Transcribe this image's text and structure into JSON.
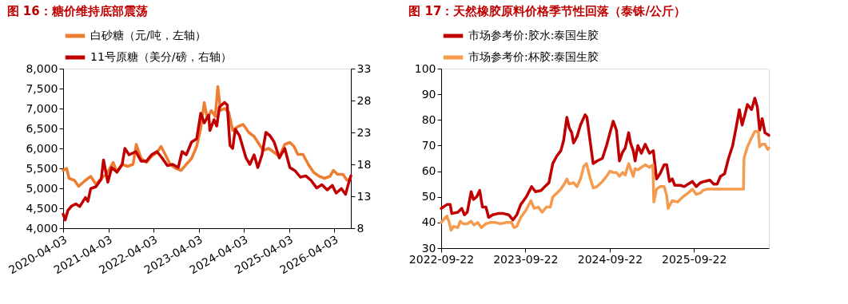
{
  "chart_data": [
    {
      "type": "line",
      "title": "图 16：糖价维持底部震荡",
      "legend": "top",
      "grid": false,
      "xlim": [
        "2020-04-03",
        "2026-08-15"
      ],
      "xticks": [
        "2020-04-03",
        "2021-04-03",
        "2022-04-03",
        "2023-04-03",
        "2024-04-03",
        "2025-04-03",
        "2026-04-03"
      ],
      "ylim": [
        4000,
        8000
      ],
      "yticks": [
        {
          "value": 4000,
          "label": "4,000"
        },
        {
          "value": 4500,
          "label": "4,500"
        },
        {
          "value": 5000,
          "label": "5,000"
        },
        {
          "value": 5500,
          "label": "5,500"
        },
        {
          "value": 6000,
          "label": "6,000"
        },
        {
          "value": 6500,
          "label": "6,500"
        },
        {
          "value": 7000,
          "label": "7,000"
        },
        {
          "value": 7500,
          "label": "7,500"
        },
        {
          "value": 8000,
          "label": "8,000"
        }
      ],
      "y2lim": [
        8,
        33
      ],
      "y2ticks": [
        8,
        13,
        18,
        23,
        28,
        33
      ],
      "series": [
        {
          "name": "白砂糖（元/吨，左轴）",
          "color": "#ed7d31",
          "x": [
            "2020-04-03",
            "2020-05-01",
            "2020-05-21",
            "2020-07-03",
            "2020-08-06",
            "2020-09-30",
            "2020-11-12",
            "2020-12-24",
            "2021-02-05",
            "2021-03-18",
            "2021-05-12",
            "2021-06-12",
            "2021-07-24",
            "2021-09-05",
            "2021-10-20",
            "2021-11-15",
            "2021-12-24",
            "2022-02-05",
            "2022-03-18",
            "2022-05-01",
            "2022-06-03",
            "2022-07-15",
            "2022-08-15",
            "2022-09-30",
            "2022-11-12",
            "2022-12-24",
            "2023-02-05",
            "2023-03-18",
            "2023-04-20",
            "2023-05-18",
            "2023-06-12",
            "2023-07-15",
            "2023-08-15",
            "2023-09-05",
            "2023-09-27",
            "2023-10-30",
            "2023-12-03",
            "2024-01-03",
            "2024-02-15",
            "2024-03-28",
            "2024-05-12",
            "2024-06-24",
            "2024-08-05",
            "2024-09-05",
            "2024-10-20",
            "2024-12-03",
            "2025-01-14",
            "2025-02-27",
            "2025-04-09",
            "2025-05-12",
            "2025-06-12",
            "2025-07-24",
            "2025-09-05",
            "2025-10-18",
            "2025-12-03",
            "2026-01-14",
            "2026-02-27",
            "2026-03-27",
            "2026-04-30",
            "2026-06-12",
            "2026-07-15",
            "2026-08-12"
          ],
          "values": [
            5450,
            5500,
            5250,
            5200,
            5050,
            5200,
            5300,
            5100,
            5250,
            5350,
            5650,
            5400,
            5600,
            5550,
            5600,
            6100,
            5750,
            5650,
            5800,
            5900,
            6050,
            5800,
            5600,
            5500,
            5450,
            5600,
            5750,
            6050,
            6500,
            7150,
            6750,
            6950,
            6800,
            7550,
            6950,
            7000,
            6900,
            6450,
            6550,
            6600,
            6400,
            6300,
            6100,
            5950,
            6000,
            5900,
            5800,
            6100,
            6150,
            6050,
            5850,
            5850,
            5600,
            5400,
            5300,
            5250,
            5300,
            5450,
            5350,
            5350,
            5200,
            5250
          ]
        },
        {
          "name": "11号原糖（美分/磅，右轴）",
          "color": "#c00000",
          "axis": "y2",
          "x": [
            "2020-04-03",
            "2020-04-20",
            "2020-05-12",
            "2020-06-12",
            "2020-07-15",
            "2020-08-15",
            "2020-09-30",
            "2020-10-20",
            "2020-11-12",
            "2020-12-24",
            "2021-02-05",
            "2021-02-23",
            "2021-03-30",
            "2021-04-30",
            "2021-06-12",
            "2021-07-24",
            "2021-08-15",
            "2021-09-18",
            "2021-11-12",
            "2021-12-24",
            "2022-02-05",
            "2022-03-18",
            "2022-05-01",
            "2022-06-12",
            "2022-07-24",
            "2022-09-05",
            "2022-10-20",
            "2022-11-20",
            "2022-12-24",
            "2023-02-05",
            "2023-03-18",
            "2023-04-20",
            "2023-05-18",
            "2023-06-23",
            "2023-07-03",
            "2023-08-05",
            "2023-08-27",
            "2023-09-18",
            "2023-10-30",
            "2023-11-20",
            "2023-12-12",
            "2024-01-03",
            "2024-01-24",
            "2024-02-27",
            "2024-03-28",
            "2024-04-20",
            "2024-05-21",
            "2024-06-24",
            "2024-07-24",
            "2024-08-27",
            "2024-09-27",
            "2024-10-30",
            "2024-12-03",
            "2025-01-14",
            "2025-02-27",
            "2025-04-09",
            "2025-05-21",
            "2025-07-03",
            "2025-08-15",
            "2025-09-27",
            "2025-11-12",
            "2025-12-24",
            "2026-02-05",
            "2026-03-18",
            "2026-04-18",
            "2026-05-31",
            "2026-07-03",
            "2026-07-24",
            "2026-08-15"
          ],
          "values": [
            10.2,
            9.3,
            10.8,
            11.5,
            11.8,
            11.4,
            12.8,
            12.2,
            14.2,
            14.5,
            15.7,
            18.7,
            15.2,
            17.5,
            16.8,
            18.0,
            20.5,
            19.5,
            20.0,
            18.5,
            18.5,
            19.5,
            20.0,
            19.0,
            17.8,
            18.0,
            17.5,
            20.0,
            19.5,
            21.5,
            22.0,
            26.0,
            24.5,
            25.7,
            23.3,
            25.0,
            24.0,
            27.0,
            27.7,
            27.3,
            21.0,
            20.5,
            23.5,
            22.5,
            20.5,
            19.0,
            18.0,
            19.5,
            17.5,
            19.5,
            23.0,
            22.5,
            21.5,
            19.0,
            20.5,
            17.5,
            17.0,
            16.0,
            16.2,
            15.5,
            14.3,
            14.8,
            14.0,
            14.7,
            13.5,
            14.2,
            13.3,
            14.8,
            16.2
          ]
        }
      ]
    },
    {
      "type": "line",
      "title": "图 17：天然橡胶原料价格季节性回落（泰铢/公斤）",
      "legend": "top",
      "grid": false,
      "xlim": [
        "2022-09-22",
        "2026-08-13"
      ],
      "xticks": [
        "2022-09-22",
        "2023-09-22",
        "2024-09-22",
        "2025-09-22"
      ],
      "ylim": [
        30,
        100
      ],
      "yticks": [
        30,
        40,
        50,
        60,
        70,
        80,
        90,
        100
      ],
      "series": [
        {
          "name": "市场参考价:胶水:泰国生胶",
          "color": "#c00000",
          "x": [
            "2022-09-22",
            "2022-10-17",
            "2022-10-31",
            "2022-11-07",
            "2022-12-03",
            "2022-12-20",
            "2023-01-01",
            "2023-01-13",
            "2023-01-30",
            "2023-02-09",
            "2023-02-23",
            "2023-03-08",
            "2023-03-20",
            "2023-04-04",
            "2023-04-16",
            "2023-05-03",
            "2023-05-27",
            "2023-06-19",
            "2023-07-12",
            "2023-07-30",
            "2023-08-16",
            "2023-09-02",
            "2023-09-26",
            "2023-10-19",
            "2023-11-05",
            "2023-11-29",
            "2023-12-16",
            "2024-01-02",
            "2024-01-19",
            "2024-02-06",
            "2024-02-23",
            "2024-03-06",
            "2024-03-20",
            "2024-03-30",
            "2024-04-10",
            "2024-04-18",
            "2024-05-03",
            "2024-05-18",
            "2024-06-07",
            "2024-06-15",
            "2024-06-30",
            "2024-07-12",
            "2024-07-29",
            "2024-08-21",
            "2024-09-08",
            "2024-09-23",
            "2024-10-07",
            "2024-10-21",
            "2024-11-03",
            "2024-11-17",
            "2024-11-28",
            "2024-12-13",
            "2024-12-21",
            "2025-01-02",
            "2025-01-10",
            "2025-01-22",
            "2025-02-06",
            "2025-02-23",
            "2025-03-13",
            "2025-03-30",
            "2025-04-13",
            "2025-04-28",
            "2025-05-16",
            "2025-05-27",
            "2025-06-08",
            "2025-06-20",
            "2025-07-01",
            "2025-07-25",
            "2025-08-11",
            "2025-08-28",
            "2025-09-15",
            "2025-10-02",
            "2025-10-20",
            "2025-11-06",
            "2025-11-30",
            "2025-12-17",
            "2026-01-01",
            "2026-01-15",
            "2026-02-02",
            "2026-02-19",
            "2026-03-09",
            "2026-03-24",
            "2026-04-07",
            "2026-04-19",
            "2026-05-01",
            "2026-05-12",
            "2026-05-30",
            "2026-06-13",
            "2026-06-24",
            "2026-07-04",
            "2026-07-15",
            "2026-07-27",
            "2026-08-13"
          ],
          "values": [
            45.5,
            47,
            47,
            43.5,
            44,
            45.5,
            43,
            44,
            52,
            49,
            50,
            52.5,
            46,
            46,
            42,
            43,
            43.5,
            43.5,
            43,
            41,
            43,
            47,
            50,
            54,
            52,
            52.5,
            54,
            55.5,
            63,
            66,
            68,
            72,
            81,
            77,
            75,
            71,
            73.5,
            78,
            82,
            81,
            71,
            63,
            64,
            65,
            70,
            75,
            79.5,
            76,
            64,
            67.5,
            69,
            75,
            71,
            68,
            64,
            70,
            67,
            70.5,
            67,
            68,
            57,
            59,
            62.5,
            62.5,
            56,
            57,
            54.5,
            54.5,
            54,
            55,
            56,
            54,
            55.5,
            56,
            56.5,
            55,
            55,
            58,
            59,
            65,
            70,
            77,
            84,
            78,
            82,
            86,
            84,
            88.5,
            85,
            76,
            80.5,
            75,
            74
          ]
        },
        {
          "name": "市场参考价:杯胶:泰国生胶",
          "color": "#f59b4f",
          "x": [
            "2022-09-22",
            "2022-10-06",
            "2022-10-17",
            "2022-10-27",
            "2022-11-04",
            "2022-11-15",
            "2022-12-03",
            "2022-12-14",
            "2022-12-26",
            "2023-01-13",
            "2023-01-30",
            "2023-02-11",
            "2023-02-28",
            "2023-03-15",
            "2023-04-04",
            "2023-04-22",
            "2023-05-15",
            "2023-06-07",
            "2023-06-30",
            "2023-07-24",
            "2023-08-04",
            "2023-08-16",
            "2023-09-02",
            "2023-09-26",
            "2023-10-16",
            "2023-10-30",
            "2023-11-17",
            "2023-12-04",
            "2023-12-22",
            "2024-01-08",
            "2024-01-19",
            "2024-02-06",
            "2024-02-23",
            "2024-03-12",
            "2024-03-20",
            "2024-03-30",
            "2024-04-18",
            "2024-05-03",
            "2024-05-18",
            "2024-06-02",
            "2024-06-13",
            "2024-06-27",
            "2024-07-12",
            "2024-07-29",
            "2024-08-21",
            "2024-09-08",
            "2024-09-23",
            "2024-10-07",
            "2024-10-21",
            "2024-11-03",
            "2024-11-17",
            "2024-11-28",
            "2024-12-13",
            "2024-12-21",
            "2025-01-02",
            "2025-01-10",
            "2025-01-22",
            "2025-02-06",
            "2025-02-23",
            "2025-03-13",
            "2025-03-28",
            "2025-04-01",
            "2025-04-13",
            "2025-04-28",
            "2025-05-16",
            "2025-05-27",
            "2025-06-02",
            "2025-06-20",
            "2025-07-13",
            "2025-08-05",
            "2025-08-28",
            "2025-09-15",
            "2025-10-02",
            "2025-10-20",
            "2025-10-31",
            "2025-11-18",
            "2025-12-17",
            "2026-02-19",
            "2026-04-25",
            "2026-04-27",
            "2026-05-12",
            "2026-05-30",
            "2026-06-13",
            "2026-06-28",
            "2026-07-04",
            "2026-07-15",
            "2026-07-27",
            "2026-08-08",
            "2026-08-13"
          ],
          "values": [
            40,
            41.5,
            42.5,
            40,
            37,
            38.5,
            38,
            40.5,
            39.5,
            39.5,
            40.5,
            39,
            40,
            38,
            39.5,
            40,
            40,
            39.5,
            40,
            40,
            38,
            38.5,
            42,
            45,
            48.5,
            45.5,
            46,
            44,
            46,
            46,
            50,
            51.5,
            53,
            55.5,
            57,
            55,
            55.5,
            54,
            57,
            62,
            63,
            58,
            53.5,
            54,
            56,
            58,
            60,
            59.5,
            59.5,
            58,
            59.5,
            58.5,
            63,
            61,
            58,
            61,
            60.5,
            61.5,
            62.5,
            61.5,
            62.5,
            48,
            53,
            54,
            54,
            50.5,
            45.5,
            48.5,
            48,
            50,
            51.5,
            53,
            51,
            51.5,
            52.5,
            53,
            53,
            53,
            53,
            65,
            69.5,
            73,
            75.5,
            75.5,
            69.5,
            70.5,
            70.5,
            68.5,
            69
          ]
        }
      ]
    }
  ]
}
